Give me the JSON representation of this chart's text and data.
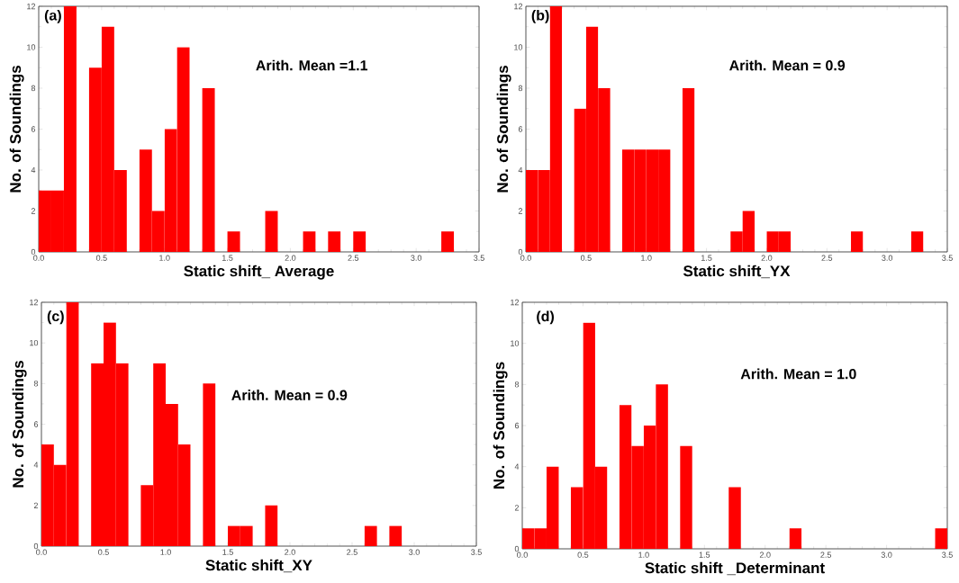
{
  "chart_data": [
    {
      "type": "histogram",
      "xlabel": "Static shift_ Average",
      "ylabel": "No. of Soundings",
      "annotations": [
        "(a)",
        "Arith. Mean =1.1"
      ],
      "color": "#ff0000",
      "bins": [
        0.0,
        0.1,
        0.2,
        0.3,
        0.4,
        0.5,
        0.6,
        0.7,
        0.8,
        0.9,
        1.0,
        1.1,
        1.2,
        1.3,
        1.4,
        1.5,
        1.6,
        1.7,
        1.8,
        1.9,
        2.0,
        2.1,
        2.2,
        2.3,
        2.4,
        2.5,
        2.6,
        2.7,
        2.8,
        2.9,
        3.0,
        3.1,
        3.2,
        3.3,
        3.4,
        3.5
      ],
      "values": [
        3,
        3,
        12,
        0,
        9,
        11,
        4,
        0,
        5,
        2,
        6,
        10,
        0,
        8,
        0,
        1,
        0,
        0,
        2,
        0,
        0,
        1,
        0,
        1,
        0,
        1,
        0,
        0,
        0,
        0,
        0,
        0,
        1,
        0,
        0
      ],
      "xlim": [
        0,
        3.5
      ],
      "ylim": [
        0,
        12
      ],
      "xticks": [
        {
          "value": 0,
          "label": "0.0"
        },
        0.5,
        {
          "value": 1,
          "label": "1.0"
        },
        1.5,
        {
          "value": 2,
          "label": "2.0"
        },
        2.5,
        {
          "value": 3,
          "label": "3.0"
        },
        3.5
      ],
      "yticks": [
        0,
        2,
        4,
        6,
        8,
        10,
        12
      ],
      "grid": false
    },
    {
      "type": "histogram",
      "xlabel": "Static shift_YX",
      "ylabel": "No. of Soundings",
      "annotations": [
        "(b)",
        "Arith. Mean = 0.9"
      ],
      "color": "#ff0000",
      "bins": [
        0.0,
        0.1,
        0.2,
        0.3,
        0.4,
        0.5,
        0.6,
        0.7,
        0.8,
        0.9,
        1.0,
        1.1,
        1.2,
        1.3,
        1.4,
        1.5,
        1.6,
        1.7,
        1.8,
        1.9,
        2.0,
        2.1,
        2.2,
        2.3,
        2.4,
        2.5,
        2.6,
        2.7,
        2.8,
        2.9,
        3.0,
        3.1,
        3.2,
        3.3,
        3.4,
        3.5
      ],
      "values": [
        4,
        4,
        12,
        0,
        7,
        11,
        8,
        0,
        5,
        5,
        5,
        5,
        0,
        8,
        0,
        0,
        0,
        1,
        2,
        0,
        1,
        1,
        0,
        0,
        0,
        0,
        0,
        1,
        0,
        0,
        0,
        0,
        1,
        0,
        0
      ],
      "xlim": [
        0,
        3.5
      ],
      "ylim": [
        0,
        12
      ],
      "xticks": [
        {
          "value": 0,
          "label": "0.0"
        },
        0.5,
        {
          "value": 1,
          "label": "1.0"
        },
        1.5,
        {
          "value": 2,
          "label": "2.0"
        },
        2.5,
        {
          "value": 3,
          "label": "3.0"
        },
        3.5
      ],
      "yticks": [
        0,
        2,
        4,
        6,
        8,
        10,
        12
      ],
      "grid": false
    },
    {
      "type": "histogram",
      "xlabel": "Static shift_XY",
      "ylabel": "No. of Soundings",
      "annotations": [
        "(c)",
        "Arith. Mean = 0.9"
      ],
      "color": "#ff0000",
      "bins": [
        0.0,
        0.1,
        0.2,
        0.3,
        0.4,
        0.5,
        0.6,
        0.7,
        0.8,
        0.9,
        1.0,
        1.1,
        1.2,
        1.3,
        1.4,
        1.5,
        1.6,
        1.7,
        1.8,
        1.9,
        2.0,
        2.1,
        2.2,
        2.3,
        2.4,
        2.5,
        2.6,
        2.7,
        2.8,
        2.9,
        3.0,
        3.1,
        3.2,
        3.3,
        3.4,
        3.5
      ],
      "values": [
        5,
        4,
        12,
        0,
        9,
        11,
        9,
        0,
        3,
        9,
        7,
        5,
        0,
        8,
        0,
        1,
        1,
        0,
        2,
        0,
        0,
        0,
        0,
        0,
        0,
        0,
        1,
        0,
        1,
        0,
        0,
        0,
        0,
        0,
        0
      ],
      "xlim": [
        0,
        3.5
      ],
      "ylim": [
        0,
        12
      ],
      "xticks": [
        {
          "value": 0,
          "label": "0.0"
        },
        0.5,
        {
          "value": 1,
          "label": "1.0"
        },
        1.5,
        {
          "value": 2,
          "label": "2.0"
        },
        2.5,
        {
          "value": 3,
          "label": "3.0"
        },
        3.5
      ],
      "yticks": [
        0,
        2,
        4,
        6,
        8,
        10,
        12
      ],
      "grid": false
    },
    {
      "type": "histogram",
      "xlabel": "Static shift _Determinant",
      "ylabel": "No. of Soundings",
      "annotations": [
        "(d)",
        "Arith. Mean = 1.0"
      ],
      "color": "#ff0000",
      "bins": [
        0.0,
        0.1,
        0.2,
        0.3,
        0.4,
        0.5,
        0.6,
        0.7,
        0.8,
        0.9,
        1.0,
        1.1,
        1.2,
        1.3,
        1.4,
        1.5,
        1.6,
        1.7,
        1.8,
        1.9,
        2.0,
        2.1,
        2.2,
        2.3,
        2.4,
        2.5,
        2.6,
        2.7,
        2.8,
        2.9,
        3.0,
        3.1,
        3.2,
        3.3,
        3.4,
        3.5
      ],
      "values": [
        1,
        1,
        4,
        0,
        3,
        11,
        4,
        0,
        7,
        5,
        6,
        8,
        0,
        5,
        0,
        0,
        0,
        3,
        0,
        0,
        0,
        0,
        1,
        0,
        0,
        0,
        0,
        0,
        0,
        0,
        0,
        0,
        0,
        0,
        1
      ],
      "xlim": [
        0,
        3.5
      ],
      "ylim": [
        0,
        12
      ],
      "xticks": [
        {
          "value": 0,
          "label": "0.0"
        },
        0.5,
        {
          "value": 1,
          "label": "1.0"
        },
        1.5,
        {
          "value": 2,
          "label": "2.0"
        },
        2.5,
        {
          "value": 3,
          "label": "3.0"
        },
        3.5
      ],
      "yticks": [
        0,
        2,
        4,
        6,
        8,
        10,
        12
      ],
      "grid": false
    }
  ]
}
